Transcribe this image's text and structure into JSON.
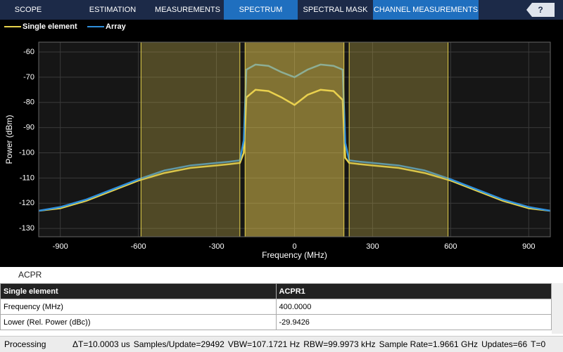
{
  "toolbar": {
    "tabs": [
      {
        "label": "SCOPE",
        "active": false
      },
      {
        "label": "ESTIMATION",
        "active": false
      },
      {
        "label": "MEASUREMENTS",
        "active": false
      },
      {
        "label": "SPECTRUM",
        "active": true
      },
      {
        "label": "SPECTRAL MASK",
        "active": false
      },
      {
        "label": "CHANNEL MEASUREMENTS",
        "active": true
      }
    ],
    "help": "?"
  },
  "chart_data": {
    "type": "line",
    "xlabel": "Frequency (MHz)",
    "ylabel": "Power (dBm)",
    "x": [
      -983,
      -900,
      -800,
      -700,
      -600,
      -500,
      -400,
      -300,
      -250,
      -210,
      -195,
      -185,
      -150,
      -100,
      -50,
      0,
      50,
      100,
      150,
      185,
      195,
      210,
      250,
      300,
      400,
      500,
      600,
      700,
      800,
      900,
      983
    ],
    "series": [
      {
        "name": "Single element",
        "color": "#e8d44d",
        "values": [
          -123,
          -122,
          -119,
          -115,
          -111,
          -108,
          -106,
          -105,
          -104.5,
          -104,
          -100,
          -78,
          -75,
          -75.5,
          -78,
          -81,
          -77,
          -75,
          -75.5,
          -79,
          -102,
          -104,
          -104.5,
          -105,
          -106,
          -108,
          -111,
          -115,
          -119,
          -122,
          -123
        ]
      },
      {
        "name": "Array",
        "color": "#2f8fdb",
        "values": [
          -123,
          -121.5,
          -118.5,
          -114.5,
          -110.5,
          -107,
          -105,
          -104,
          -103.5,
          -103,
          -95,
          -67,
          -65,
          -65.5,
          -68,
          -70,
          -67,
          -65,
          -65.5,
          -67,
          -96,
          -103,
          -103.5,
          -104,
          -105,
          -107,
          -110.5,
          -114.5,
          -118.5,
          -121.5,
          -123
        ]
      }
    ],
    "bands": [
      [
        -590,
        -210
      ],
      [
        -190,
        190
      ],
      [
        210,
        590
      ]
    ],
    "xlim": [
      -983,
      983
    ],
    "ylim": [
      -56.1,
      -133.3
    ],
    "xticks": [
      -900,
      -600,
      -300,
      0,
      300,
      600,
      900
    ],
    "yticks": [
      -60,
      -70,
      -80,
      -90,
      -100,
      -110,
      -120,
      -130
    ],
    "grid": true
  },
  "table": {
    "title": "ACPR",
    "rows": [
      [
        "Single element",
        "ACPR1"
      ],
      [
        "Frequency (MHz)",
        "400.0000"
      ],
      [
        "Lower (Rel. Power (dBc))",
        "-29.9426"
      ]
    ]
  },
  "status": {
    "state": "Processing",
    "items": [
      "ΔT=10.0003 us",
      "Samples/Update=29492",
      "VBW=107.1721 Hz",
      "RBW=99.9973 kHz",
      "Sample Rate=1.9661 GHz",
      "Updates=66",
      "T=0"
    ]
  }
}
